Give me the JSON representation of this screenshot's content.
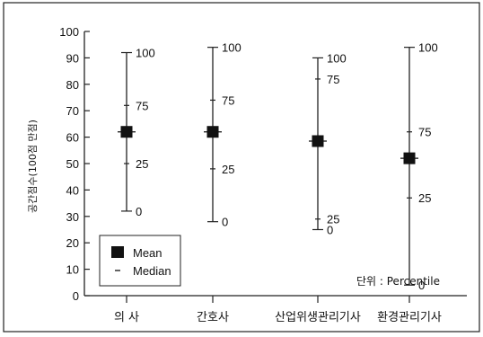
{
  "chart_data": {
    "type": "scatter",
    "ylabel": "공간점수(100점 만점)",
    "ylim": [
      0,
      100
    ],
    "yticks": [
      0,
      10,
      20,
      30,
      40,
      50,
      60,
      70,
      80,
      90,
      100
    ],
    "categories": [
      "의 사",
      "간호사",
      "산업위생관리기사",
      "환경관리기사"
    ],
    "percentile_labels": [
      "0",
      "25",
      "75",
      "100"
    ],
    "series": [
      {
        "name": "Mean",
        "values": [
          62,
          62,
          58.5,
          52
        ]
      },
      {
        "name": "Median",
        "values": [
          62,
          62,
          58.5,
          52
        ]
      }
    ],
    "percentiles": [
      {
        "p0": 32,
        "p25": 50,
        "p75": 72,
        "p100": 92
      },
      {
        "p0": 28,
        "p25": 48,
        "p75": 74,
        "p100": 94
      },
      {
        "p0": 25,
        "p25": 29,
        "p75": 82,
        "p100": 90
      },
      {
        "p0": 4,
        "p25": 37,
        "p75": 62,
        "p100": 94
      }
    ],
    "legend": {
      "placement": "bottom-left",
      "entries": [
        "Mean",
        "Median"
      ]
    },
    "unit_note": "단위 : Percentile",
    "grid": false
  }
}
